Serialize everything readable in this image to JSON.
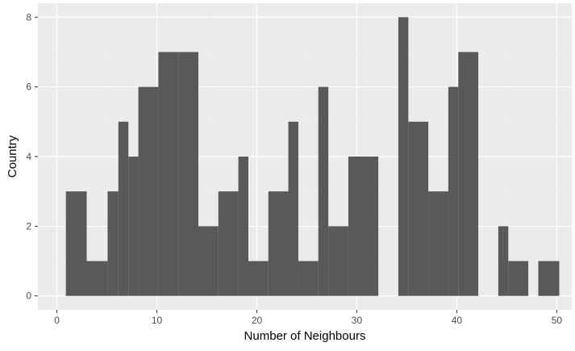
{
  "chart_data": {
    "type": "bar",
    "title": "",
    "xlabel": "Number of Neighbours",
    "ylabel": "Country",
    "bin_width": 2.083,
    "bins": [
      {
        "x0": 0.9,
        "x1": 2.98,
        "count": 3
      },
      {
        "x0": 2.98,
        "x1": 5.07,
        "count": 1
      },
      {
        "x0": 5.07,
        "x1": 6.15,
        "count": 3
      },
      {
        "x0": 6.15,
        "x1": 7.15,
        "count": 5
      },
      {
        "x0": 7.15,
        "x1": 8.15,
        "count": 4
      },
      {
        "x0": 8.15,
        "x1": 10.15,
        "count": 6
      },
      {
        "x0": 10.15,
        "x1": 12.15,
        "count": 7
      },
      {
        "x0": 12.15,
        "x1": 14.15,
        "count": 7
      },
      {
        "x0": 14.15,
        "x1": 16.15,
        "count": 2
      },
      {
        "x0": 16.15,
        "x1": 18.15,
        "count": 3
      },
      {
        "x0": 18.15,
        "x1": 19.15,
        "count": 4
      },
      {
        "x0": 19.15,
        "x1": 21.15,
        "count": 1
      },
      {
        "x0": 21.15,
        "x1": 23.15,
        "count": 3
      },
      {
        "x0": 23.15,
        "x1": 24.15,
        "count": 5
      },
      {
        "x0": 24.15,
        "x1": 26.15,
        "count": 1
      },
      {
        "x0": 26.15,
        "x1": 27.15,
        "count": 6
      },
      {
        "x0": 27.15,
        "x1": 29.15,
        "count": 2
      },
      {
        "x0": 29.15,
        "x1": 32.15,
        "count": 4
      },
      {
        "x0": 32.15,
        "x1": 34.15,
        "count": 0
      },
      {
        "x0": 34.15,
        "x1": 35.15,
        "count": 8
      },
      {
        "x0": 35.15,
        "x1": 37.15,
        "count": 5
      },
      {
        "x0": 37.15,
        "x1": 39.15,
        "count": 3
      },
      {
        "x0": 39.15,
        "x1": 40.15,
        "count": 6
      },
      {
        "x0": 40.15,
        "x1": 42.15,
        "count": 7
      },
      {
        "x0": 42.15,
        "x1": 44.15,
        "count": 0
      },
      {
        "x0": 44.15,
        "x1": 45.15,
        "count": 2
      },
      {
        "x0": 45.15,
        "x1": 47.15,
        "count": 1
      },
      {
        "x0": 47.15,
        "x1": 48.15,
        "count": 0
      },
      {
        "x0": 48.15,
        "x1": 50.25,
        "count": 1
      }
    ],
    "x_ticks": [
      0,
      10,
      20,
      30,
      40,
      50
    ],
    "y_ticks": [
      0,
      2,
      4,
      6,
      8
    ],
    "xlim": [
      -1.9,
      51.5
    ],
    "ylim": [
      -0.4,
      8.4
    ],
    "grid": true,
    "colors": {
      "panel_background": "#ebebeb",
      "grid_major": "#ffffff",
      "grid_minor": "#f4f4f4",
      "bar_fill": "#595959",
      "axis_text": "#4d4d4d",
      "axis_title": "#000000"
    }
  }
}
